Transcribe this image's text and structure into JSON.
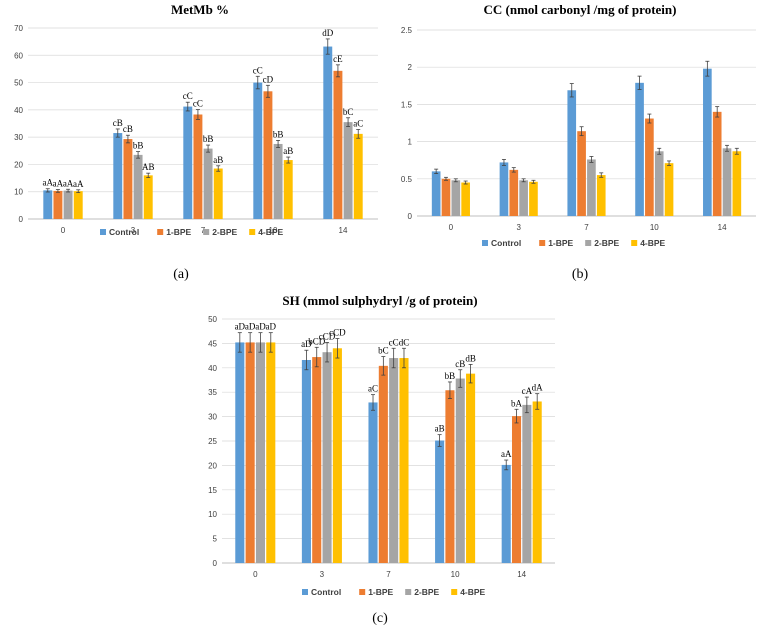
{
  "colors": {
    "control": "#5B9BD5",
    "bpe1": "#ED7D31",
    "bpe2": "#A5A5A5",
    "bpe4": "#FFC000",
    "grid": "#d9d9d9",
    "axis": "#bfbfbf",
    "error": "#404040"
  },
  "legend": [
    "Control",
    "1-BPE",
    "2-BPE",
    "4-BPE"
  ],
  "chart_data": [
    {
      "id": "a",
      "type": "bar",
      "title": "MetMb %",
      "panel_label": "(a)",
      "categories": [
        "0",
        "3",
        "7",
        "10",
        "14"
      ],
      "ylim": [
        0,
        70
      ],
      "yticks": [
        0,
        10,
        20,
        30,
        40,
        50,
        60,
        70
      ],
      "series": [
        {
          "name": "Control",
          "values": [
            10.5,
            31.5,
            41.2,
            50.0,
            63.2
          ],
          "errors": [
            0.6,
            1.5,
            1.6,
            2.3,
            2.8
          ],
          "labels": [
            "aA",
            "cB",
            "cC",
            "cC",
            "dD"
          ]
        },
        {
          "name": "1-BPE",
          "values": [
            10.3,
            29.3,
            38.3,
            46.8,
            54.3
          ],
          "errors": [
            0.5,
            1.4,
            1.8,
            2.2,
            2.2
          ],
          "labels": [
            "aA",
            "cB",
            "cC",
            "cD",
            "cE"
          ]
        },
        {
          "name": "2-BPE",
          "values": [
            10.4,
            23.5,
            25.8,
            27.5,
            35.5
          ],
          "errors": [
            0.5,
            1.2,
            1.3,
            1.3,
            1.6
          ],
          "labels": [
            "aA",
            "bB",
            "bB",
            "bB",
            "bC"
          ]
        },
        {
          "name": "4-BPE",
          "values": [
            10.2,
            16.0,
            18.5,
            21.6,
            31.2
          ],
          "errors": [
            0.5,
            0.8,
            1.0,
            1.1,
            1.6
          ],
          "labels": [
            "aA",
            "AB",
            "aB",
            "aB",
            "aC"
          ]
        }
      ]
    },
    {
      "id": "b",
      "type": "bar",
      "title": "CC (nmol carbonyl /mg of protein)",
      "panel_label": "(b)",
      "categories": [
        "0",
        "3",
        "7",
        "10",
        "14"
      ],
      "ylim": [
        0,
        2.5
      ],
      "yticks": [
        0,
        0.5,
        1,
        1.5,
        2,
        2.5
      ],
      "series": [
        {
          "name": "Control",
          "values": [
            0.6,
            0.72,
            1.69,
            1.79,
            1.98
          ],
          "errors": [
            0.03,
            0.04,
            0.09,
            0.09,
            0.1
          ],
          "labels": []
        },
        {
          "name": "1-BPE",
          "values": [
            0.5,
            0.62,
            1.14,
            1.31,
            1.4
          ],
          "errors": [
            0.02,
            0.03,
            0.06,
            0.06,
            0.07
          ],
          "labels": []
        },
        {
          "name": "2-BPE",
          "values": [
            0.48,
            0.48,
            0.76,
            0.87,
            0.91
          ],
          "errors": [
            0.02,
            0.02,
            0.04,
            0.04,
            0.04
          ],
          "labels": []
        },
        {
          "name": "4-BPE",
          "values": [
            0.45,
            0.46,
            0.55,
            0.71,
            0.87
          ],
          "errors": [
            0.02,
            0.02,
            0.03,
            0.03,
            0.04
          ],
          "labels": []
        }
      ]
    },
    {
      "id": "c",
      "type": "bar",
      "title": "SH (mmol sulphydryl /g of protein)",
      "panel_label": "(c)",
      "categories": [
        "0",
        "3",
        "7",
        "10",
        "14"
      ],
      "ylim": [
        0,
        50
      ],
      "yticks": [
        0,
        5,
        10,
        15,
        20,
        25,
        30,
        35,
        40,
        45,
        50
      ],
      "series": [
        {
          "name": "Control",
          "values": [
            45.2,
            41.6,
            32.9,
            25.1,
            20.1
          ],
          "errors": [
            2.0,
            2.0,
            1.6,
            1.2,
            1.0
          ],
          "labels": [
            "aD",
            "aD",
            "aC",
            "aB",
            "aA"
          ]
        },
        {
          "name": "1-BPE",
          "values": [
            45.2,
            42.2,
            40.4,
            35.4,
            30.1
          ],
          "errors": [
            2.0,
            2.0,
            1.9,
            1.7,
            1.4
          ],
          "labels": [
            "aD",
            "bCD",
            "bC",
            "bB",
            "bA"
          ]
        },
        {
          "name": "2-BPE",
          "values": [
            45.2,
            43.2,
            42.0,
            37.8,
            32.4
          ],
          "errors": [
            2.0,
            2.0,
            2.0,
            1.8,
            1.6
          ],
          "labels": [
            "aD",
            "cCD",
            "cC",
            "cB",
            "cA"
          ]
        },
        {
          "name": "4-BPE",
          "values": [
            45.2,
            44.0,
            42.0,
            38.8,
            33.1
          ],
          "errors": [
            2.0,
            2.0,
            2.0,
            1.9,
            1.6
          ],
          "labels": [
            "aD",
            "cCD",
            "dC",
            "dB",
            "dA"
          ]
        }
      ]
    }
  ]
}
